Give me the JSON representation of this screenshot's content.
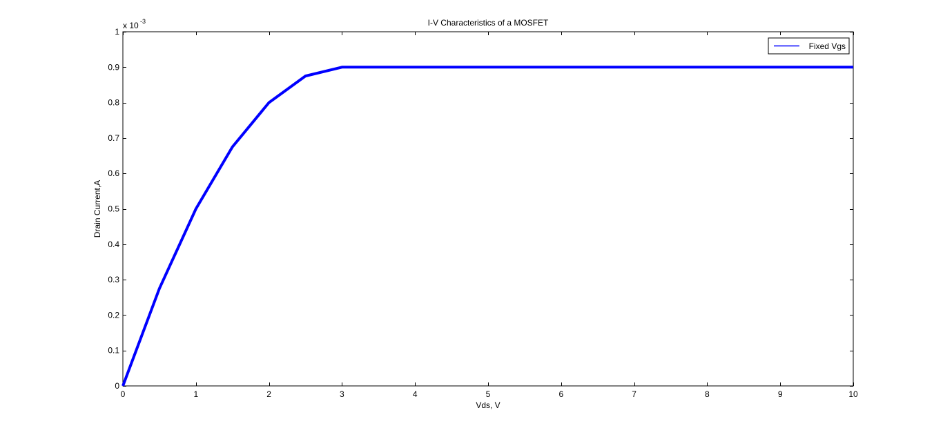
{
  "chart_data": {
    "type": "line",
    "title": "I-V Characteristics of a MOSFET",
    "xlabel": "Vds, V",
    "ylabel": "Drain Current,A",
    "y_exponent_base": "x 10",
    "y_exponent_power": "-3",
    "xlim": [
      0,
      10
    ],
    "ylim": [
      0,
      1
    ],
    "x_ticks": [
      0,
      1,
      2,
      3,
      4,
      5,
      6,
      7,
      8,
      9,
      10
    ],
    "y_ticks": [
      0,
      0.1,
      0.2,
      0.3,
      0.4,
      0.5,
      0.6,
      0.7,
      0.8,
      0.9,
      1
    ],
    "x_tick_labels": [
      "0",
      "1",
      "2",
      "3",
      "4",
      "5",
      "6",
      "7",
      "8",
      "9",
      "10"
    ],
    "y_tick_labels": [
      "0",
      "0.1",
      "0.2",
      "0.3",
      "0.4",
      "0.5",
      "0.6",
      "0.7",
      "0.8",
      "0.9",
      "1"
    ],
    "grid": false,
    "legend_position": "top-right",
    "series": [
      {
        "name": "Fixed Vgs",
        "color": "#0000ff",
        "x": [
          0,
          0.5,
          1,
          1.5,
          2,
          2.5,
          3,
          3.5,
          4,
          4.5,
          5,
          5.5,
          6,
          6.5,
          7,
          7.5,
          8,
          8.5,
          9,
          9.5,
          10
        ],
        "y": [
          0,
          0.275,
          0.5,
          0.675,
          0.8,
          0.875,
          0.9,
          0.9,
          0.9,
          0.9,
          0.9,
          0.9,
          0.9,
          0.9,
          0.9,
          0.9,
          0.9,
          0.9,
          0.9,
          0.9,
          0.9
        ]
      }
    ]
  }
}
